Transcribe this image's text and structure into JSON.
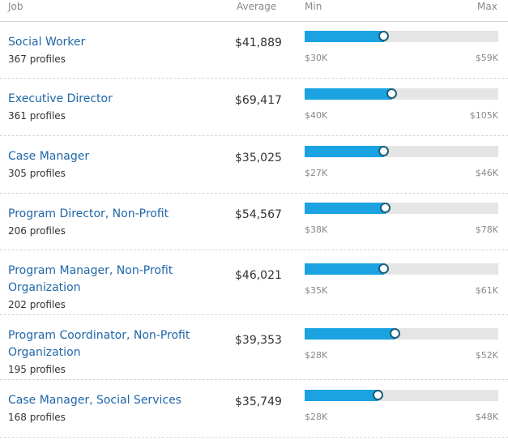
{
  "header": {
    "job": "Job",
    "average": "Average",
    "min": "Min",
    "max": "Max"
  },
  "rows": [
    {
      "title": "Social Worker",
      "profiles": "367 profiles",
      "average": "$41,889",
      "min": "$30K",
      "max": "$59K",
      "fill_fraction": 0.41
    },
    {
      "title": "Executive Director",
      "profiles": "361 profiles",
      "average": "$69,417",
      "min": "$40K",
      "max": "$105K",
      "fill_fraction": 0.45
    },
    {
      "title": "Case Manager",
      "profiles": "305 profiles",
      "average": "$35,025",
      "min": "$27K",
      "max": "$46K",
      "fill_fraction": 0.41
    },
    {
      "title": "Program Director, Non-Profit",
      "profiles": "206 profiles",
      "average": "$54,567",
      "min": "$38K",
      "max": "$78K",
      "fill_fraction": 0.42
    },
    {
      "title": "Program Manager, Non-Profit Organization",
      "profiles": "202 profiles",
      "average": "$46,021",
      "min": "$35K",
      "max": "$61K",
      "fill_fraction": 0.41
    },
    {
      "title": "Program Coordinator, Non-Profit Organization",
      "profiles": "195 profiles",
      "average": "$39,353",
      "min": "$28K",
      "max": "$52K",
      "fill_fraction": 0.47
    },
    {
      "title": "Case Manager, Social Services",
      "profiles": "168 profiles",
      "average": "$35,749",
      "min": "$28K",
      "max": "$48K",
      "fill_fraction": 0.38
    }
  ],
  "colors": {
    "link": "#1f66a8",
    "bar_fill": "#1aa3e0",
    "bar_track": "#e5e5e5",
    "knob_border": "#1b5f7a"
  }
}
